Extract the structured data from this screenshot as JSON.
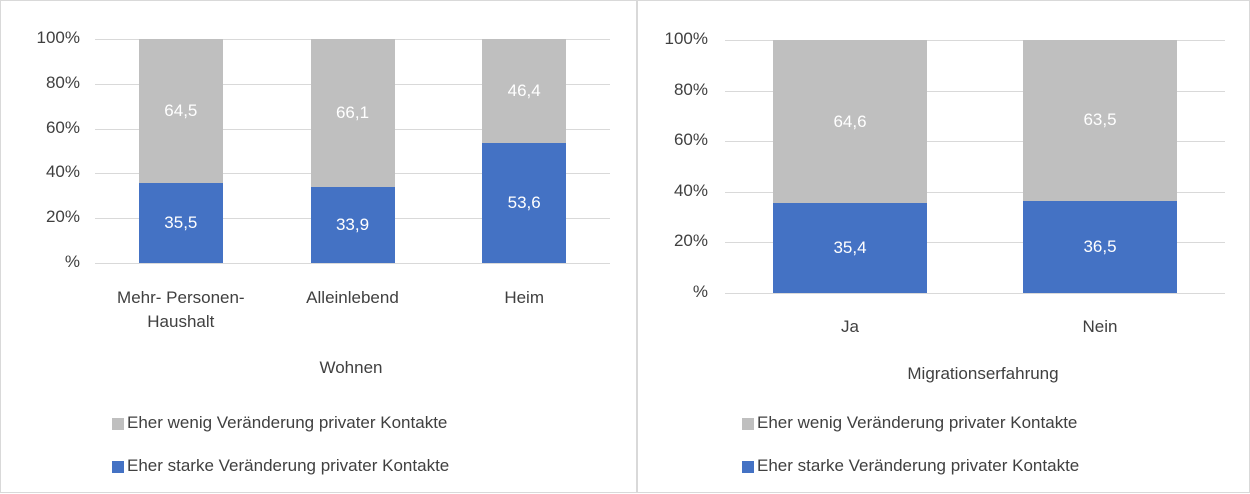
{
  "chart_data": [
    {
      "type": "bar",
      "stacked": true,
      "x_label": "Wohnen",
      "categories": [
        "Mehr- Personen-Haushalt",
        "Alleinlebend",
        "Heim"
      ],
      "series": [
        {
          "name": "Eher wenig Veränderung privater Kontakte",
          "color": "#bfbfbf",
          "values": [
            64.5,
            66.1,
            46.4
          ],
          "value_labels": [
            "64,5",
            "66,1",
            "46,4"
          ]
        },
        {
          "name": "Eher starke Veränderung privater Kontakte",
          "color": "#4472c4",
          "values": [
            35.5,
            33.9,
            53.6
          ],
          "value_labels": [
            "35,5",
            "33,9",
            "53,6"
          ]
        }
      ],
      "ylim": [
        0,
        100
      ],
      "yticks": [
        {
          "value": 0,
          "label": "%"
        },
        {
          "value": 20,
          "label": "20%"
        },
        {
          "value": 40,
          "label": "40%"
        },
        {
          "value": 60,
          "label": "60%"
        },
        {
          "value": 80,
          "label": "80%"
        },
        {
          "value": 100,
          "label": "100%"
        }
      ],
      "grid": true,
      "legend": "bottom"
    },
    {
      "type": "bar",
      "stacked": true,
      "x_label": "Migrationserfahrung",
      "categories": [
        "Ja",
        "Nein"
      ],
      "series": [
        {
          "name": "Eher wenig Veränderung privater Kontakte",
          "color": "#bfbfbf",
          "values": [
            64.6,
            63.5
          ],
          "value_labels": [
            "64,6",
            "63,5"
          ]
        },
        {
          "name": "Eher starke Veränderung privater Kontakte",
          "color": "#4472c4",
          "values": [
            35.4,
            36.5
          ],
          "value_labels": [
            "35,4",
            "36,5"
          ]
        }
      ],
      "ylim": [
        0,
        100
      ],
      "yticks": [
        {
          "value": 0,
          "label": "%"
        },
        {
          "value": 20,
          "label": "20%"
        },
        {
          "value": 40,
          "label": "40%"
        },
        {
          "value": 60,
          "label": "60%"
        },
        {
          "value": 80,
          "label": "80%"
        },
        {
          "value": 100,
          "label": "100%"
        }
      ],
      "grid": true,
      "legend": "bottom"
    }
  ]
}
